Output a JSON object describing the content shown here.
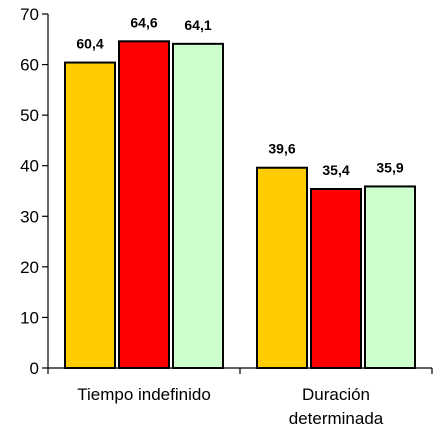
{
  "chart_data": {
    "type": "bar",
    "categories": [
      [
        "Tiempo indefinido"
      ],
      [
        "Duración",
        "determinada"
      ]
    ],
    "series": [
      {
        "values": [
          60.4,
          39.6
        ],
        "labels": [
          "60,4",
          "39,6"
        ],
        "color": "#FFCC00"
      },
      {
        "values": [
          64.6,
          35.4
        ],
        "labels": [
          "64,6",
          "35,4"
        ],
        "color": "#FF0000"
      },
      {
        "values": [
          64.1,
          35.9
        ],
        "labels": [
          "64,1",
          "35,9"
        ],
        "color": "#CCFFCC"
      }
    ],
    "yticks": [
      0,
      10,
      20,
      30,
      40,
      50,
      60,
      70
    ],
    "ylim": [
      0,
      70
    ],
    "grid": false,
    "legend": "none"
  }
}
